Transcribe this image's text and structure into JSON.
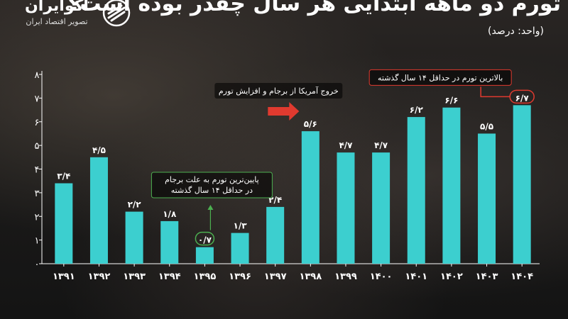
{
  "header": {
    "title": "تورم دو ماهه ابتدایی هر سال چقدر بوده است؟",
    "unit": "(واحد: درصد)"
  },
  "logo": {
    "name": "اکوایران",
    "tagline": "تصویر اقتصاد ایران",
    "icon": "ecoiran-logo-icon"
  },
  "colors": {
    "bar": "#3ccfcf",
    "accent_red": "#e03a2f",
    "highlight_green": "#4caf50",
    "axis": "#ffffff"
  },
  "chart_data": {
    "type": "bar",
    "title": "تورم دو ماهه ابتدایی هر سال چقدر بوده است؟",
    "ylabel": "(واحد: درصد)",
    "xlabel": "",
    "ylim": [
      0,
      8
    ],
    "yticks": [
      "۰",
      "۱",
      "۲",
      "۳",
      "۴",
      "۵",
      "۶",
      "۷",
      "۸"
    ],
    "grid": false,
    "categories": [
      "۱۳۹۱",
      "۱۳۹۲",
      "۱۳۹۳",
      "۱۳۹۴",
      "۱۳۹۵",
      "۱۳۹۶",
      "۱۳۹۷",
      "۱۳۹۸",
      "۱۳۹۹",
      "۱۴۰۰",
      "۱۴۰۱",
      "۱۴۰۲",
      "۱۴۰۳",
      "۱۴۰۴"
    ],
    "values": [
      3.4,
      4.5,
      2.2,
      1.8,
      0.7,
      1.3,
      2.4,
      5.6,
      4.7,
      4.7,
      6.2,
      6.6,
      5.5,
      6.7
    ],
    "value_labels": [
      "۳/۴",
      "۴/۵",
      "۲/۲",
      "۱/۸",
      "۰/۷",
      "۱/۳",
      "۲/۴",
      "۵/۶",
      "۴/۷",
      "۴/۷",
      "۶/۲",
      "۶/۶",
      "۵/۵",
      "۶/۷"
    ],
    "annotations": [
      {
        "text": "بالاترین تورم در حداقل ۱۴ سال گذشته",
        "category": "۱۴۰۴",
        "style": "red-box"
      },
      {
        "text": "خروج آمریکا از برجام و افزایش تورم",
        "category": "۱۳۹۸",
        "style": "red-arrow"
      },
      {
        "text_lines": [
          "پایین‌ترین تورم به علت برجام",
          "در حداقل ۱۴ سال گذشته"
        ],
        "category": "۱۳۹۵",
        "style": "green-box"
      }
    ]
  }
}
